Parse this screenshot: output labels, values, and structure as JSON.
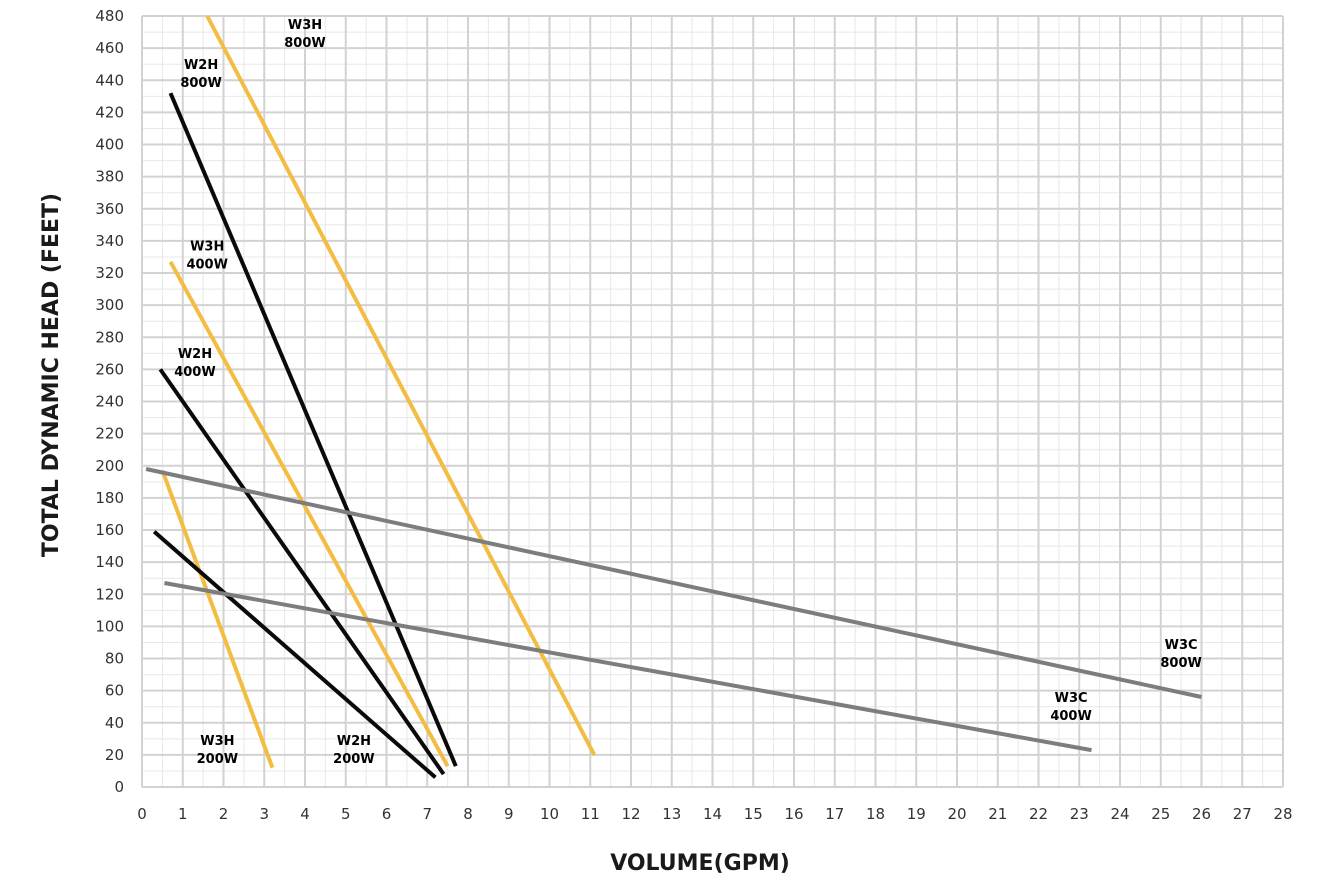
{
  "chart_data": {
    "type": "line",
    "title": "",
    "xlabel": "VOLUME(GPM)",
    "ylabel": "TOTAL DYNAMIC HEAD (FEET)",
    "xlim": [
      0,
      28
    ],
    "ylim": [
      0,
      480
    ],
    "x_ticks": [
      0,
      1,
      2,
      3,
      4,
      5,
      6,
      7,
      8,
      9,
      10,
      11,
      12,
      13,
      14,
      15,
      16,
      17,
      18,
      19,
      20,
      21,
      22,
      23,
      24,
      25,
      26,
      27,
      28
    ],
    "y_ticks": [
      0,
      20,
      40,
      60,
      80,
      100,
      120,
      140,
      160,
      180,
      200,
      220,
      240,
      260,
      280,
      300,
      320,
      340,
      360,
      380,
      400,
      420,
      440,
      460,
      480
    ],
    "grid": true,
    "legend": "none",
    "colors": {
      "yellow": "#f2bd42",
      "black": "#0a0a0a",
      "gray": "#7d7d7d",
      "grid_major": "#d2d2d2",
      "grid_minor": "#e8e8e8"
    },
    "series": [
      {
        "color": "yellow",
        "points": [
          [
            1.6,
            480
          ],
          [
            11.1,
            20
          ]
        ]
      },
      {
        "color": "black",
        "points": [
          [
            0.7,
            432
          ],
          [
            7.7,
            13
          ]
        ]
      },
      {
        "color": "yellow",
        "points": [
          [
            0.7,
            327
          ],
          [
            7.5,
            13
          ]
        ]
      },
      {
        "color": "black",
        "points": [
          [
            0.45,
            260
          ],
          [
            7.4,
            8
          ]
        ]
      },
      {
        "color": "yellow",
        "points": [
          [
            0.5,
            197
          ],
          [
            3.2,
            12
          ]
        ]
      },
      {
        "color": "black",
        "points": [
          [
            0.3,
            159
          ],
          [
            7.2,
            6
          ]
        ]
      },
      {
        "color": "gray",
        "points": [
          [
            0.1,
            198
          ],
          [
            26.0,
            56
          ]
        ]
      },
      {
        "color": "gray",
        "points": [
          [
            0.55,
            127
          ],
          [
            23.3,
            23
          ]
        ]
      }
    ],
    "annotations": [
      {
        "lines": [
          "W3H",
          "800W"
        ],
        "x": 4.0,
        "y": 472
      },
      {
        "lines": [
          "W2H",
          "800W"
        ],
        "x": 1.45,
        "y": 447
      },
      {
        "lines": [
          "W3H",
          "400W"
        ],
        "x": 1.6,
        "y": 334
      },
      {
        "lines": [
          "W2H",
          "400W"
        ],
        "x": 1.3,
        "y": 267
      },
      {
        "lines": [
          "W3H",
          "200W"
        ],
        "x": 1.85,
        "y": 26
      },
      {
        "lines": [
          "W2H",
          "200W"
        ],
        "x": 5.2,
        "y": 26
      },
      {
        "lines": [
          "W3C",
          "800W"
        ],
        "x": 25.5,
        "y": 86
      },
      {
        "lines": [
          "W3C",
          "400W"
        ],
        "x": 22.8,
        "y": 53
      }
    ]
  }
}
